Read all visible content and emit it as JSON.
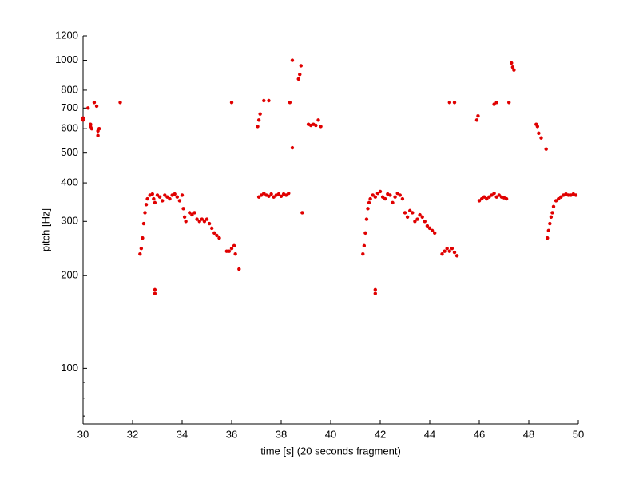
{
  "chart_data": {
    "type": "scatter",
    "xlabel": "time [s] (20 seconds fragment)",
    "ylabel": "pitch [Hz]",
    "xlim": [
      30,
      50
    ],
    "xticks": [
      30,
      32,
      34,
      36,
      38,
      40,
      42,
      44,
      46,
      48,
      50
    ],
    "ylim": [
      66,
      1200
    ],
    "yticks": [
      100,
      200,
      300,
      400,
      500,
      600,
      700,
      800,
      1000,
      1200
    ],
    "yminorticks": [
      70,
      80,
      90
    ],
    "log_y": true,
    "x": [
      30.0,
      30.0,
      30.2,
      30.3,
      30.3,
      30.35,
      30.45,
      30.55,
      30.6,
      30.65,
      30.6,
      31.5,
      32.3,
      32.35,
      32.4,
      32.45,
      32.5,
      32.55,
      32.6,
      32.7,
      32.8,
      32.85,
      32.9,
      33.0,
      33.1,
      33.2,
      33.3,
      33.4,
      33.5,
      33.6,
      33.7,
      33.8,
      33.9,
      34.0,
      32.9,
      32.9,
      34.05,
      34.1,
      34.15,
      34.3,
      34.4,
      34.5,
      34.6,
      34.7,
      34.8,
      34.9,
      35.0,
      35.1,
      35.2,
      35.3,
      35.4,
      35.5,
      35.8,
      35.9,
      36.0,
      36.1,
      36.15,
      36.3,
      36.0,
      37.05,
      37.1,
      37.15,
      37.3,
      37.5,
      37.1,
      37.2,
      37.3,
      37.4,
      37.5,
      37.6,
      37.7,
      37.8,
      37.9,
      38.0,
      38.1,
      38.2,
      38.3,
      38.35,
      38.45,
      38.45,
      38.7,
      38.75,
      38.8,
      38.85,
      39.1,
      39.2,
      39.3,
      39.4,
      39.5,
      39.6,
      41.3,
      41.35,
      41.4,
      41.45,
      41.5,
      41.55,
      41.6,
      41.7,
      41.8,
      41.9,
      42.0,
      42.1,
      42.2,
      42.3,
      42.4,
      42.5,
      42.6,
      42.7,
      42.8,
      42.9,
      41.8,
      41.8,
      43.0,
      43.1,
      43.2,
      43.3,
      43.4,
      43.5,
      43.6,
      43.7,
      43.8,
      43.9,
      44.0,
      44.1,
      44.2,
      44.5,
      44.6,
      44.7,
      44.8,
      44.9,
      45.0,
      45.1,
      44.8,
      45.0,
      45.9,
      45.95,
      46.0,
      46.1,
      46.2,
      46.3,
      46.4,
      46.5,
      46.6,
      46.7,
      46.8,
      46.9,
      47.0,
      47.1,
      46.6,
      46.7,
      47.2,
      47.3,
      47.35,
      47.4,
      48.3,
      48.35,
      48.4,
      48.5,
      48.7,
      48.75,
      48.8,
      48.85,
      48.9,
      48.95,
      49.0,
      49.1,
      49.2,
      49.3,
      49.4,
      49.5,
      49.6,
      49.7,
      49.8,
      49.9
    ],
    "series": [
      {
        "color": "#e00000",
        "values": [
          640,
          650,
          700,
          620,
          610,
          600,
          730,
          710,
          590,
          600,
          570,
          730,
          235,
          245,
          265,
          295,
          320,
          340,
          355,
          365,
          368,
          355,
          345,
          365,
          360,
          350,
          365,
          360,
          355,
          365,
          368,
          360,
          350,
          365,
          175,
          180,
          330,
          310,
          300,
          320,
          315,
          320,
          305,
          300,
          305,
          300,
          305,
          295,
          285,
          275,
          270,
          265,
          240,
          240,
          245,
          250,
          235,
          210,
          730,
          610,
          640,
          670,
          740,
          740,
          360,
          365,
          370,
          365,
          362,
          368,
          360,
          365,
          368,
          362,
          368,
          365,
          370,
          730,
          520,
          1000,
          870,
          900,
          960,
          320,
          620,
          615,
          620,
          615,
          640,
          610,
          235,
          250,
          275,
          305,
          330,
          345,
          355,
          365,
          360,
          370,
          375,
          360,
          355,
          368,
          365,
          345,
          360,
          370,
          365,
          355,
          175,
          180,
          320,
          310,
          325,
          320,
          300,
          305,
          315,
          310,
          300,
          290,
          285,
          280,
          275,
          235,
          240,
          245,
          240,
          245,
          238,
          232,
          730,
          730,
          640,
          660,
          350,
          355,
          360,
          355,
          360,
          365,
          370,
          360,
          365,
          360,
          358,
          355,
          720,
          730,
          730,
          980,
          950,
          930,
          620,
          610,
          580,
          560,
          515,
          265,
          280,
          295,
          310,
          320,
          335,
          350,
          355,
          360,
          365,
          368,
          365,
          365,
          368,
          365
        ]
      }
    ]
  }
}
